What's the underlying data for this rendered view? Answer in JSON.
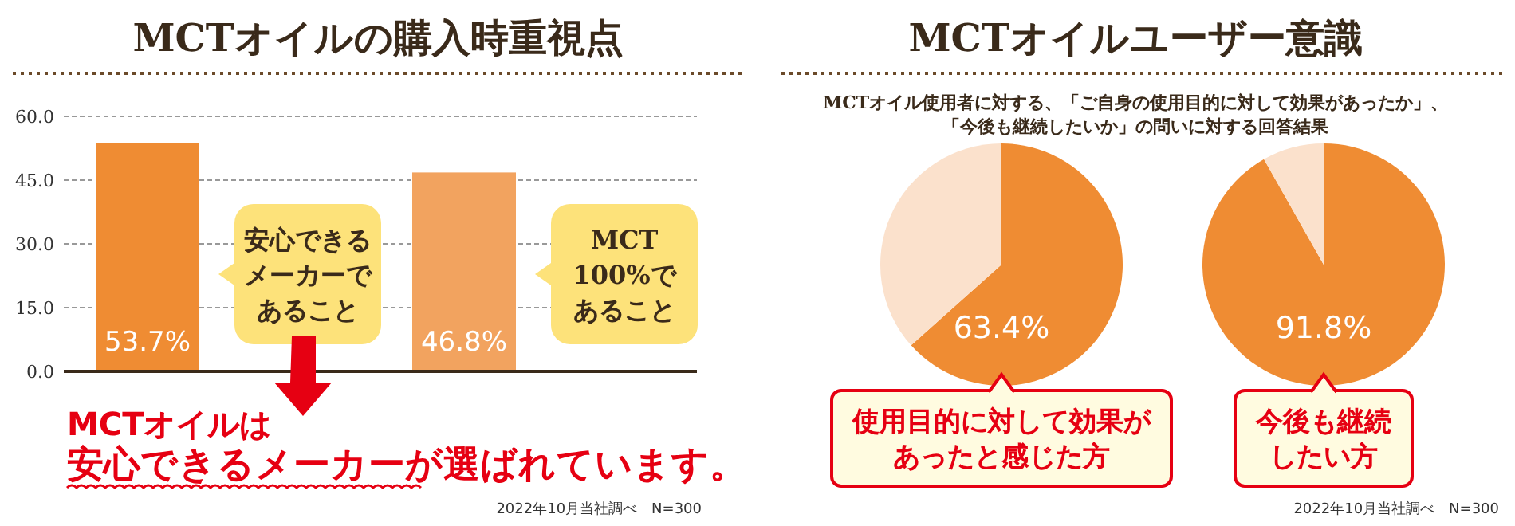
{
  "chart_data": [
    {
      "type": "bar",
      "title": "MCTオイルの購入時重視点",
      "categories": [
        null,
        null
      ],
      "values": [
        53.7,
        46.8
      ],
      "colors": [
        "#ef8c33",
        "#f2a35f"
      ],
      "value_labels": [
        "53.7%",
        "46.8%"
      ],
      "ylim": [
        0,
        60
      ],
      "yticks": [
        {
          "value": 0,
          "label": "0.0"
        },
        {
          "value": 15,
          "label": "15.0"
        },
        {
          "value": 30,
          "label": "30.0"
        },
        {
          "value": 45,
          "label": "45.0"
        },
        {
          "value": 60,
          "label": "60.0"
        }
      ],
      "grid": "y",
      "annotations": [
        "安心できるメーカーであること",
        "MCT100%であること",
        "MCTオイルは安心できるメーカーが選ばれています。",
        "2022年10月当社調べ　N=300"
      ]
    },
    {
      "type": "pie",
      "title": "MCTオイルユーザー意識",
      "subtitle": "MCTオイル使用者に対する、「ご自身の使用目的に対して効果があったか」、「今後も継続したいか」の問いに対する回答結果",
      "categories": [
        "使用目的に対して効果があったと感じた方",
        null
      ],
      "values": [
        63.4,
        36.6
      ],
      "colors": [
        "#ef8c33",
        "#fbe1cc"
      ],
      "value_labels": [
        "63.4%",
        null
      ]
    },
    {
      "type": "pie",
      "categories": [
        "今後も継続したい方",
        null
      ],
      "values": [
        91.8,
        8.2
      ],
      "colors": [
        "#ef8c33",
        "#fbe1cc"
      ],
      "value_labels": [
        "91.8%",
        null
      ],
      "annotations": [
        "2022年10月当社調べ　N=300"
      ]
    }
  ]
}
